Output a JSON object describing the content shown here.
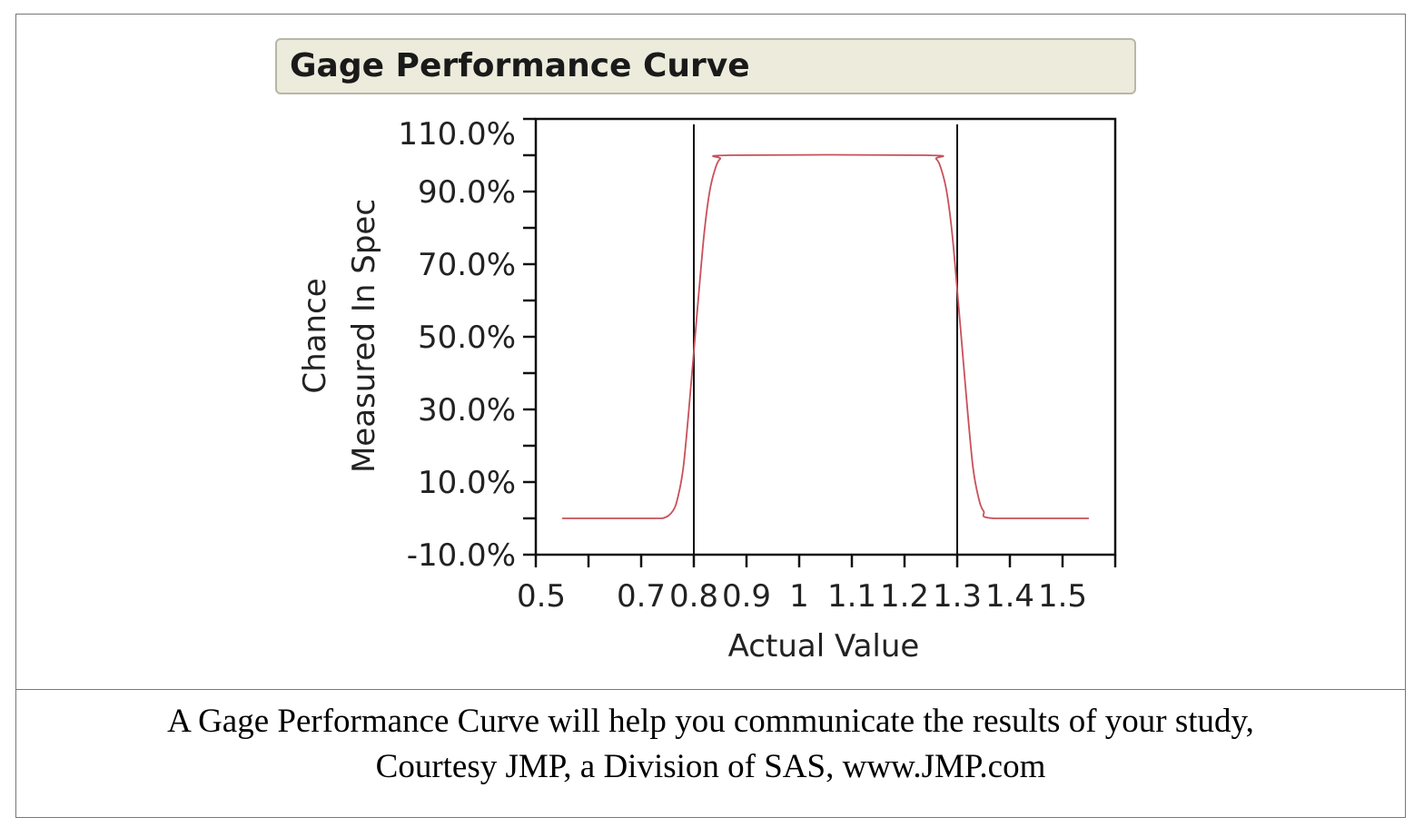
{
  "title": "Gage Performance Curve",
  "caption": {
    "line1": "A Gage Performance Curve will help you communicate the results of your study,",
    "line2": "Courtesy JMP, a Division of SAS, www.JMP.com"
  },
  "chart_data": {
    "type": "line",
    "title": "Gage Performance Curve",
    "xlabel": "Actual Value",
    "ylabel_lines": [
      "Chance",
      "Measured In Spec"
    ],
    "xlim": [
      0.5,
      1.6
    ],
    "ylim": [
      -10,
      110
    ],
    "x_ticks": [
      0.5,
      0.6,
      0.7,
      0.8,
      0.9,
      1.0,
      1.1,
      1.2,
      1.3,
      1.4,
      1.5,
      1.6
    ],
    "x_tick_labels": [
      "0.5",
      "",
      "0.7",
      "0.8",
      "0.9",
      "1",
      "1.1",
      "1.2",
      "1.3",
      "1.4",
      "1.5",
      ""
    ],
    "y_ticks": [
      -10,
      0,
      10,
      20,
      30,
      40,
      50,
      60,
      70,
      80,
      90,
      100,
      110
    ],
    "y_tick_labels": [
      "-10.0%",
      "",
      "10.0%",
      "",
      "30.0%",
      "",
      "50.0%",
      "",
      "70.0%",
      "",
      "90.0%",
      "",
      "110.0%"
    ],
    "grid": false,
    "reference_lines_x": [
      0.8,
      1.3
    ],
    "series": [
      {
        "color": "#c8505a",
        "x": [
          0.55,
          0.7,
          0.74,
          0.76,
          0.77,
          0.78,
          0.79,
          0.8,
          0.81,
          0.82,
          0.83,
          0.84,
          0.85,
          0.87,
          1.24,
          1.26,
          1.27,
          1.28,
          1.29,
          1.3,
          1.31,
          1.32,
          1.33,
          1.34,
          1.35,
          1.37,
          1.55
        ],
        "y": [
          0,
          0,
          0,
          2,
          6,
          14,
          29,
          46,
          63,
          79,
          90,
          96,
          99,
          100,
          100,
          99,
          96,
          90,
          79,
          63,
          46,
          29,
          14,
          6,
          2,
          0,
          0
        ]
      }
    ]
  }
}
